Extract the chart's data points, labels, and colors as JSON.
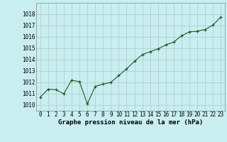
{
  "x": [
    0,
    1,
    2,
    3,
    4,
    5,
    6,
    7,
    8,
    9,
    10,
    11,
    12,
    13,
    14,
    15,
    16,
    17,
    18,
    19,
    20,
    21,
    22,
    23
  ],
  "y": [
    1010.7,
    1011.4,
    1011.35,
    1011.0,
    1012.2,
    1012.05,
    1010.1,
    1011.65,
    1011.85,
    1012.0,
    1012.6,
    1013.2,
    1013.85,
    1014.45,
    1014.7,
    1014.95,
    1015.3,
    1015.55,
    1016.1,
    1016.45,
    1016.5,
    1016.65,
    1017.05,
    1017.75
  ],
  "title": "Graphe pression niveau de la mer (hPa)",
  "background_color": "#c8eef0",
  "grid_color": "#b0c8c8",
  "line_color": "#1a5c1a",
  "marker_color": "#1a5c1a",
  "ylim_min": 1009.5,
  "ylim_max": 1019.0,
  "xlim_min": -0.5,
  "xlim_max": 23.5,
  "yticks": [
    1010,
    1011,
    1012,
    1013,
    1014,
    1015,
    1016,
    1017,
    1018
  ],
  "xticks": [
    0,
    1,
    2,
    3,
    4,
    5,
    6,
    7,
    8,
    9,
    10,
    11,
    12,
    13,
    14,
    15,
    16,
    17,
    18,
    19,
    20,
    21,
    22,
    23
  ],
  "title_fontsize": 6.5,
  "tick_fontsize": 5.5
}
